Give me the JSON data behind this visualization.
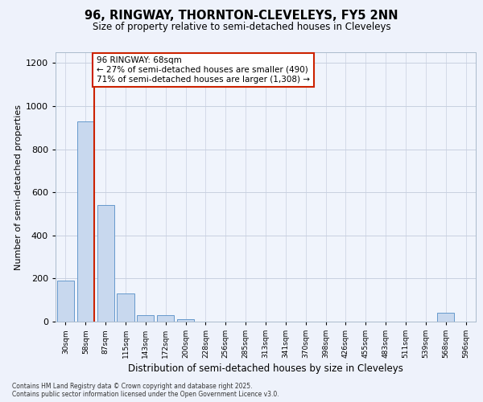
{
  "title1": "96, RINGWAY, THORNTON-CLEVELEYS, FY5 2NN",
  "title2": "Size of property relative to semi-detached houses in Cleveleys",
  "xlabel": "Distribution of semi-detached houses by size in Cleveleys",
  "ylabel": "Number of semi-detached properties",
  "categories": [
    "30sqm",
    "58sqm",
    "87sqm",
    "115sqm",
    "143sqm",
    "172sqm",
    "200sqm",
    "228sqm",
    "256sqm",
    "285sqm",
    "313sqm",
    "341sqm",
    "370sqm",
    "398sqm",
    "426sqm",
    "455sqm",
    "483sqm",
    "511sqm",
    "539sqm",
    "568sqm",
    "596sqm"
  ],
  "values": [
    190,
    930,
    540,
    130,
    30,
    30,
    10,
    0,
    0,
    0,
    0,
    0,
    0,
    0,
    0,
    0,
    0,
    0,
    0,
    40,
    0
  ],
  "bar_color": "#c8d8ee",
  "bar_edge_color": "#6699cc",
  "vline_color": "#cc2200",
  "annotation_text": "96 RINGWAY: 68sqm\n← 27% of semi-detached houses are smaller (490)\n71% of semi-detached houses are larger (1,308) →",
  "annotation_box_color": "#ffffff",
  "annotation_border_color": "#cc2200",
  "ylim": [
    0,
    1250
  ],
  "yticks": [
    0,
    200,
    400,
    600,
    800,
    1000,
    1200
  ],
  "footer": "Contains HM Land Registry data © Crown copyright and database right 2025.\nContains public sector information licensed under the Open Government Licence v3.0.",
  "bg_color": "#eef2fb",
  "plot_bg_color": "#f0f4fc",
  "grid_color": "#c8d0e0"
}
